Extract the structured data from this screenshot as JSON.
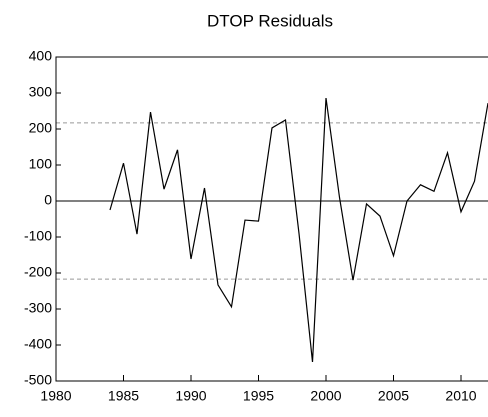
{
  "chart_data": {
    "type": "line",
    "title": "DTOP Residuals",
    "x": [
      1984,
      1985,
      1986,
      1987,
      1988,
      1989,
      1990,
      1991,
      1992,
      1993,
      1994,
      1995,
      1996,
      1997,
      1998,
      1999,
      2000,
      2001,
      2002,
      2003,
      2004,
      2005,
      2006,
      2007,
      2008,
      2009,
      2010,
      2011,
      2012
    ],
    "values": [
      -25,
      105,
      -92,
      247,
      33,
      142,
      -161,
      36,
      -233,
      -294,
      -53,
      -56,
      203,
      225,
      -90,
      -447,
      286,
      10,
      -220,
      -8,
      -42,
      -152,
      0,
      45,
      27,
      134,
      -30,
      55,
      272
    ],
    "color": "#000000",
    "xlim": [
      1980,
      2012
    ],
    "xticks": [
      1980,
      1985,
      1990,
      1995,
      2000,
      2005,
      2010
    ],
    "ylim": [
      -500,
      400
    ],
    "yticks": [
      -500,
      -400,
      -300,
      -200,
      -100,
      0,
      100,
      200,
      300,
      400
    ],
    "reference_lines": [
      0
    ],
    "dashed_lines": [
      217,
      -217
    ]
  }
}
